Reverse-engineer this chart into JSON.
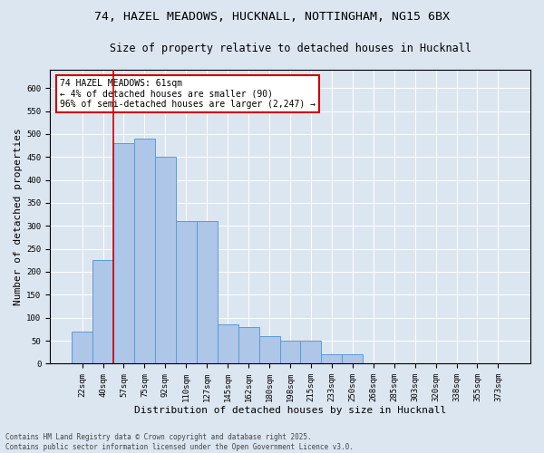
{
  "title_line1": "74, HAZEL MEADOWS, HUCKNALL, NOTTINGHAM, NG15 6BX",
  "title_line2": "Size of property relative to detached houses in Hucknall",
  "xlabel": "Distribution of detached houses by size in Hucknall",
  "ylabel": "Number of detached properties",
  "categories": [
    "22sqm",
    "40sqm",
    "57sqm",
    "75sqm",
    "92sqm",
    "110sqm",
    "127sqm",
    "145sqm",
    "162sqm",
    "180sqm",
    "198sqm",
    "215sqm",
    "233sqm",
    "250sqm",
    "268sqm",
    "285sqm",
    "303sqm",
    "320sqm",
    "338sqm",
    "355sqm",
    "373sqm"
  ],
  "values": [
    70,
    225,
    480,
    490,
    450,
    310,
    310,
    85,
    80,
    60,
    50,
    50,
    20,
    20,
    0,
    0,
    0,
    0,
    0,
    0,
    0
  ],
  "bar_color": "#aec6e8",
  "bar_edge_color": "#5b9bd5",
  "vline_x_index": 2,
  "vline_color": "#cc0000",
  "annotation_text": "74 HAZEL MEADOWS: 61sqm\n← 4% of detached houses are smaller (90)\n96% of semi-detached houses are larger (2,247) →",
  "annotation_box_color": "#ffffff",
  "annotation_box_edge_color": "#cc0000",
  "ylim": [
    0,
    640
  ],
  "yticks": [
    0,
    50,
    100,
    150,
    200,
    250,
    300,
    350,
    400,
    450,
    500,
    550,
    600
  ],
  "background_color": "#dce6f1",
  "plot_background_color": "#dce6f1",
  "footer_text": "Contains HM Land Registry data © Crown copyright and database right 2025.\nContains public sector information licensed under the Open Government Licence v3.0.",
  "title_fontsize": 9.5,
  "subtitle_fontsize": 8.5,
  "axis_label_fontsize": 8,
  "tick_fontsize": 6.5,
  "annotation_fontsize": 7,
  "footer_fontsize": 5.5
}
